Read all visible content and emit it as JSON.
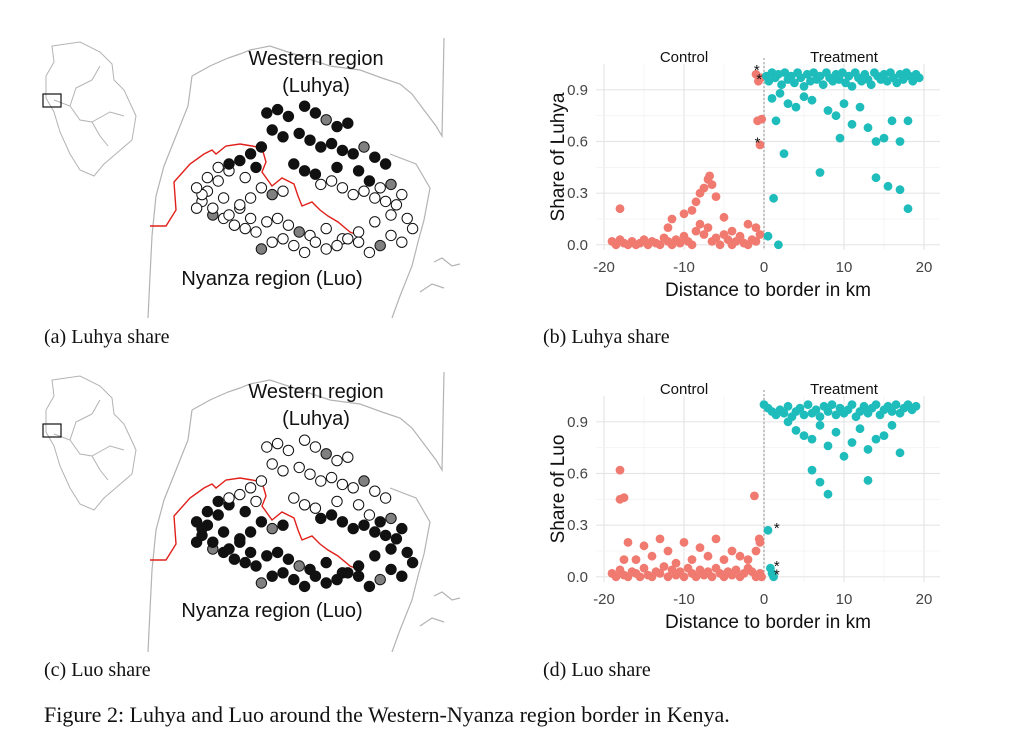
{
  "figure_caption": "Figure 2: Luhya and Luo around the Western-Nyanza region border in Kenya.",
  "panels": {
    "a": {
      "caption": "(a) Luhya share",
      "label_north_1": "Western region",
      "label_north_2": "(Luhya)",
      "label_south": "Nyanza region (Luo)",
      "fill_rule": "luhya"
    },
    "c": {
      "caption": "(c) Luo share",
      "label_north_1": "Western region",
      "label_north_2": "(Luhya)",
      "label_south": "Nyanza region (Luo)",
      "fill_rule": "luo"
    },
    "b": {
      "caption": "(b) Luhya share"
    },
    "d": {
      "caption": "(d) Luo share"
    }
  },
  "colors": {
    "control": "#f07a70",
    "treatment": "#1fbcbc",
    "border": "#e0201a",
    "outline": "#b3b3b3"
  },
  "map_points": {
    "type": "scatter",
    "note_values": "share shown as fill: dark = high",
    "x": [
      0.44,
      0.48,
      0.52,
      0.58,
      0.62,
      0.66,
      0.7,
      0.74,
      0.46,
      0.5,
      0.56,
      0.6,
      0.64,
      0.68,
      0.72,
      0.76,
      0.8,
      0.84,
      0.88,
      0.42,
      0.38,
      0.34,
      0.3,
      0.26,
      0.22,
      0.2,
      0.18,
      0.24,
      0.28,
      0.36,
      0.4,
      0.54,
      0.58,
      0.62,
      0.7,
      0.78,
      0.82,
      0.86,
      0.9,
      0.94,
      0.92,
      0.88,
      0.84,
      0.8,
      0.76,
      0.72,
      0.68,
      0.64,
      0.5,
      0.46,
      0.42,
      0.38,
      0.34,
      0.3,
      0.32,
      0.36,
      0.4,
      0.44,
      0.48,
      0.52,
      0.56,
      0.6,
      0.66,
      0.72,
      0.78,
      0.84,
      0.9,
      0.96,
      0.98,
      0.94,
      0.9,
      0.86,
      0.82,
      0.78,
      0.74,
      0.7,
      0.66,
      0.62,
      0.58,
      0.54,
      0.5,
      0.46,
      0.42,
      0.38,
      0.34,
      0.28,
      0.24,
      0.2,
      0.18,
      0.22,
      0.26,
      0.3
    ],
    "y": [
      0.1,
      0.08,
      0.12,
      0.06,
      0.1,
      0.14,
      0.18,
      0.16,
      0.2,
      0.24,
      0.22,
      0.26,
      0.3,
      0.28,
      0.32,
      0.34,
      0.3,
      0.36,
      0.4,
      0.3,
      0.34,
      0.38,
      0.44,
      0.5,
      0.56,
      0.62,
      0.66,
      0.7,
      0.72,
      0.48,
      0.42,
      0.4,
      0.44,
      0.46,
      0.42,
      0.44,
      0.5,
      0.54,
      0.52,
      0.58,
      0.64,
      0.62,
      0.6,
      0.56,
      0.58,
      0.54,
      0.5,
      0.52,
      0.56,
      0.58,
      0.54,
      0.6,
      0.66,
      0.7,
      0.76,
      0.78,
      0.8,
      0.74,
      0.72,
      0.76,
      0.8,
      0.82,
      0.78,
      0.84,
      0.8,
      0.74,
      0.7,
      0.72,
      0.78,
      0.86,
      0.82,
      0.88,
      0.92,
      0.86,
      0.84,
      0.88,
      0.9,
      0.86,
      0.92,
      0.88,
      0.84,
      0.86,
      0.9,
      0.72,
      0.64,
      0.6,
      0.66,
      0.58,
      0.54,
      0.48,
      0.42,
      0.4
    ]
  },
  "chart_data": [
    {
      "type": "scatter",
      "ylabel": "Share of Luhya",
      "xlabel": "Distance to border in km",
      "xlim": [
        -21,
        22
      ],
      "ylim": [
        -0.03,
        1.05
      ],
      "xticks": [
        -20,
        -10,
        0,
        10,
        20
      ],
      "yticks": [
        0.0,
        0.3,
        0.6,
        0.9
      ],
      "ytick_labels": [
        "0.0",
        "0.3",
        "0.6",
        "0.9"
      ],
      "xtick_labels": [
        "-20",
        "-10",
        "0",
        "10",
        "20"
      ],
      "group_labels": [
        "Control",
        "Treatment"
      ],
      "grid": true,
      "series": [
        {
          "x": [
            -19,
            -18.5,
            -18,
            -17.5,
            -17,
            -16.5,
            -16,
            -15.5,
            -15,
            -14.5,
            -14,
            -13.5,
            -13,
            -12.5,
            -12,
            -11.5,
            -11,
            -10.5,
            -10,
            -9.5,
            -9,
            -8.5,
            -8,
            -7.5,
            -7,
            -6.5,
            -6,
            -5.5,
            -5,
            -4.5,
            -4,
            -3.5,
            -3,
            -2.5,
            -2,
            -1.5,
            -1,
            -0.5,
            -18,
            -12,
            -11.5,
            -10,
            -9,
            -8.5,
            -8,
            -7.5,
            -7,
            -6.8,
            -6.5,
            -6,
            -5,
            -4,
            -3,
            -2,
            -1,
            -0.8,
            -0.5,
            -0.3,
            -0.7,
            -0.4,
            -1
          ],
          "y": [
            0.02,
            0.0,
            0.03,
            0.01,
            0.0,
            0.02,
            0.0,
            0.01,
            0.03,
            0.0,
            0.02,
            0.01,
            0.0,
            0.04,
            0.02,
            0.0,
            0.03,
            0.01,
            0.05,
            0.02,
            0.0,
            0.08,
            0.12,
            0.06,
            0.1,
            0.02,
            0.04,
            0.0,
            0.06,
            0.03,
            0.0,
            0.02,
            0.05,
            0.01,
            0.0,
            0.03,
            0.02,
            0.06,
            0.21,
            0.1,
            0.15,
            0.18,
            0.2,
            0.25,
            0.3,
            0.33,
            0.38,
            0.4,
            0.35,
            0.28,
            0.16,
            0.08,
            0.04,
            0.12,
            0.1,
            0.72,
            0.58,
            0.73,
            0.95,
            0.97,
            0.99
          ]
        },
        {
          "x": [
            0.3,
            0.6,
            1,
            1.4,
            1.8,
            2.2,
            2.6,
            3,
            3.4,
            3.8,
            4.2,
            4.6,
            5,
            5.4,
            5.8,
            6.2,
            6.6,
            7,
            7.4,
            7.8,
            8.2,
            8.6,
            9,
            9.4,
            9.8,
            10.2,
            10.6,
            11,
            11.4,
            11.8,
            12.2,
            12.6,
            13,
            13.4,
            13.8,
            14.2,
            14.6,
            15,
            15.4,
            15.8,
            16.2,
            16.6,
            17,
            17.4,
            17.8,
            18.2,
            18.6,
            19,
            19.4,
            1,
            2,
            3,
            4,
            5,
            6,
            8,
            9,
            10,
            11,
            12,
            13,
            14,
            15,
            16,
            17,
            18,
            1.5,
            2.5,
            7,
            9.5,
            14,
            15.5,
            17,
            18,
            0.5,
            1.2,
            1.8
          ],
          "y": [
            0.98,
            0.95,
            1.0,
            0.97,
            0.99,
            0.93,
            1.0,
            0.96,
            0.98,
            0.94,
            1.0,
            0.97,
            0.92,
            0.99,
            0.95,
            1.0,
            0.96,
            0.98,
            0.93,
            1.0,
            0.97,
            0.95,
            0.99,
            0.96,
            1.0,
            0.94,
            0.98,
            0.92,
            1.0,
            0.97,
            0.95,
            0.99,
            0.96,
            0.93,
            1.0,
            0.98,
            0.96,
            0.99,
            0.95,
            1.0,
            0.97,
            0.94,
            0.99,
            0.96,
            1.0,
            0.98,
            0.95,
            0.99,
            0.97,
            0.85,
            0.88,
            0.82,
            0.8,
            0.86,
            0.84,
            0.78,
            0.75,
            0.82,
            0.7,
            0.8,
            0.68,
            0.6,
            0.62,
            0.72,
            0.6,
            0.72,
            0.72,
            0.53,
            0.42,
            0.62,
            0.39,
            0.34,
            0.32,
            0.21,
            0.05,
            0.27,
            0.0
          ]
        }
      ],
      "annotations": [
        {
          "x": -0.9,
          "y": 1.02,
          "text": "*"
        },
        {
          "x": -0.6,
          "y": 0.97,
          "text": "*"
        },
        {
          "x": -0.8,
          "y": 0.6,
          "text": "*"
        }
      ]
    },
    {
      "type": "scatter",
      "ylabel": "Share of Luo",
      "xlabel": "Distance to border in km",
      "xlim": [
        -21,
        22
      ],
      "ylim": [
        -0.03,
        1.05
      ],
      "xticks": [
        -20,
        -10,
        0,
        10,
        20
      ],
      "yticks": [
        0.0,
        0.3,
        0.6,
        0.9
      ],
      "ytick_labels": [
        "0.0",
        "0.3",
        "0.6",
        "0.9"
      ],
      "xtick_labels": [
        "-20",
        "-10",
        "0",
        "10",
        "20"
      ],
      "group_labels": [
        "Control",
        "Treatment"
      ],
      "grid": true,
      "series": [
        {
          "x": [
            -19,
            -18.5,
            -18,
            -17.5,
            -17,
            -16.5,
            -16,
            -15.5,
            -15,
            -14.5,
            -14,
            -13.5,
            -13,
            -12.5,
            -12,
            -11.5,
            -11,
            -10.5,
            -10,
            -9.5,
            -9,
            -8.5,
            -8,
            -7.5,
            -7,
            -6.5,
            -6,
            -5.5,
            -5,
            -4.5,
            -4,
            -3.5,
            -3,
            -2.5,
            -2,
            -1.5,
            -1,
            -0.5,
            -18,
            -17.5,
            -17,
            -16,
            -15,
            -14,
            -13,
            -12,
            -11,
            -10,
            -9,
            -8,
            -7,
            -6,
            -5,
            -4,
            -3,
            -2,
            -1,
            -0.5,
            -18,
            -17.5,
            -1.2,
            -0.6,
            -0.3
          ],
          "y": [
            0.02,
            0.0,
            0.04,
            0.01,
            0.0,
            0.03,
            0.02,
            0.0,
            0.05,
            0.01,
            0.0,
            0.03,
            0.02,
            0.06,
            0.0,
            0.04,
            0.01,
            0.03,
            0.0,
            0.05,
            0.02,
            0.0,
            0.04,
            0.01,
            0.03,
            0.0,
            0.05,
            0.02,
            0.0,
            0.03,
            0.01,
            0.04,
            0.0,
            0.02,
            0.05,
            0.03,
            0.0,
            0.02,
            0.45,
            0.46,
            0.2,
            0.1,
            0.18,
            0.12,
            0.22,
            0.15,
            0.08,
            0.2,
            0.1,
            0.17,
            0.12,
            0.22,
            0.1,
            0.15,
            0.12,
            0.1,
            0.15,
            0.2,
            0.62,
            0.1,
            0.47,
            0.22,
            0.0
          ]
        },
        {
          "x": [
            0,
            0.5,
            1,
            1.5,
            2,
            2.5,
            3,
            3.5,
            4,
            4.5,
            5,
            5.5,
            6,
            6.5,
            7,
            7.5,
            8,
            8.5,
            9,
            9.5,
            10,
            10.5,
            11,
            11.5,
            12,
            12.5,
            13,
            13.5,
            14,
            14.5,
            15,
            15.5,
            16,
            16.5,
            17,
            17.5,
            18,
            18.5,
            19,
            3,
            4,
            5,
            6,
            7,
            8,
            9,
            10,
            11,
            12,
            13,
            14,
            15,
            16,
            17,
            6,
            7,
            8,
            13,
            0.5,
            0.8,
            1,
            1.2
          ],
          "y": [
            1.0,
            0.98,
            0.96,
            0.94,
            0.97,
            0.95,
            0.99,
            0.93,
            0.96,
            0.98,
            0.94,
            1.0,
            0.95,
            0.97,
            0.93,
            0.99,
            0.96,
            1.0,
            0.94,
            0.98,
            0.95,
            0.97,
            1.0,
            0.93,
            0.96,
            0.99,
            0.95,
            0.98,
            1.0,
            0.94,
            0.97,
            0.99,
            0.96,
            1.0,
            0.95,
            0.98,
            1.0,
            0.97,
            0.99,
            0.9,
            0.85,
            0.82,
            0.8,
            0.88,
            0.76,
            0.84,
            0.7,
            0.78,
            0.86,
            0.74,
            0.8,
            0.82,
            0.88,
            0.72,
            0.62,
            0.55,
            0.48,
            0.56,
            0.27,
            0.05,
            0.02,
            0.0
          ]
        }
      ],
      "annotations": [
        {
          "x": 1.6,
          "y": 0.29,
          "text": "*"
        },
        {
          "x": 1.6,
          "y": 0.07,
          "text": "*"
        },
        {
          "x": 1.6,
          "y": 0.02,
          "text": "*"
        }
      ]
    }
  ]
}
